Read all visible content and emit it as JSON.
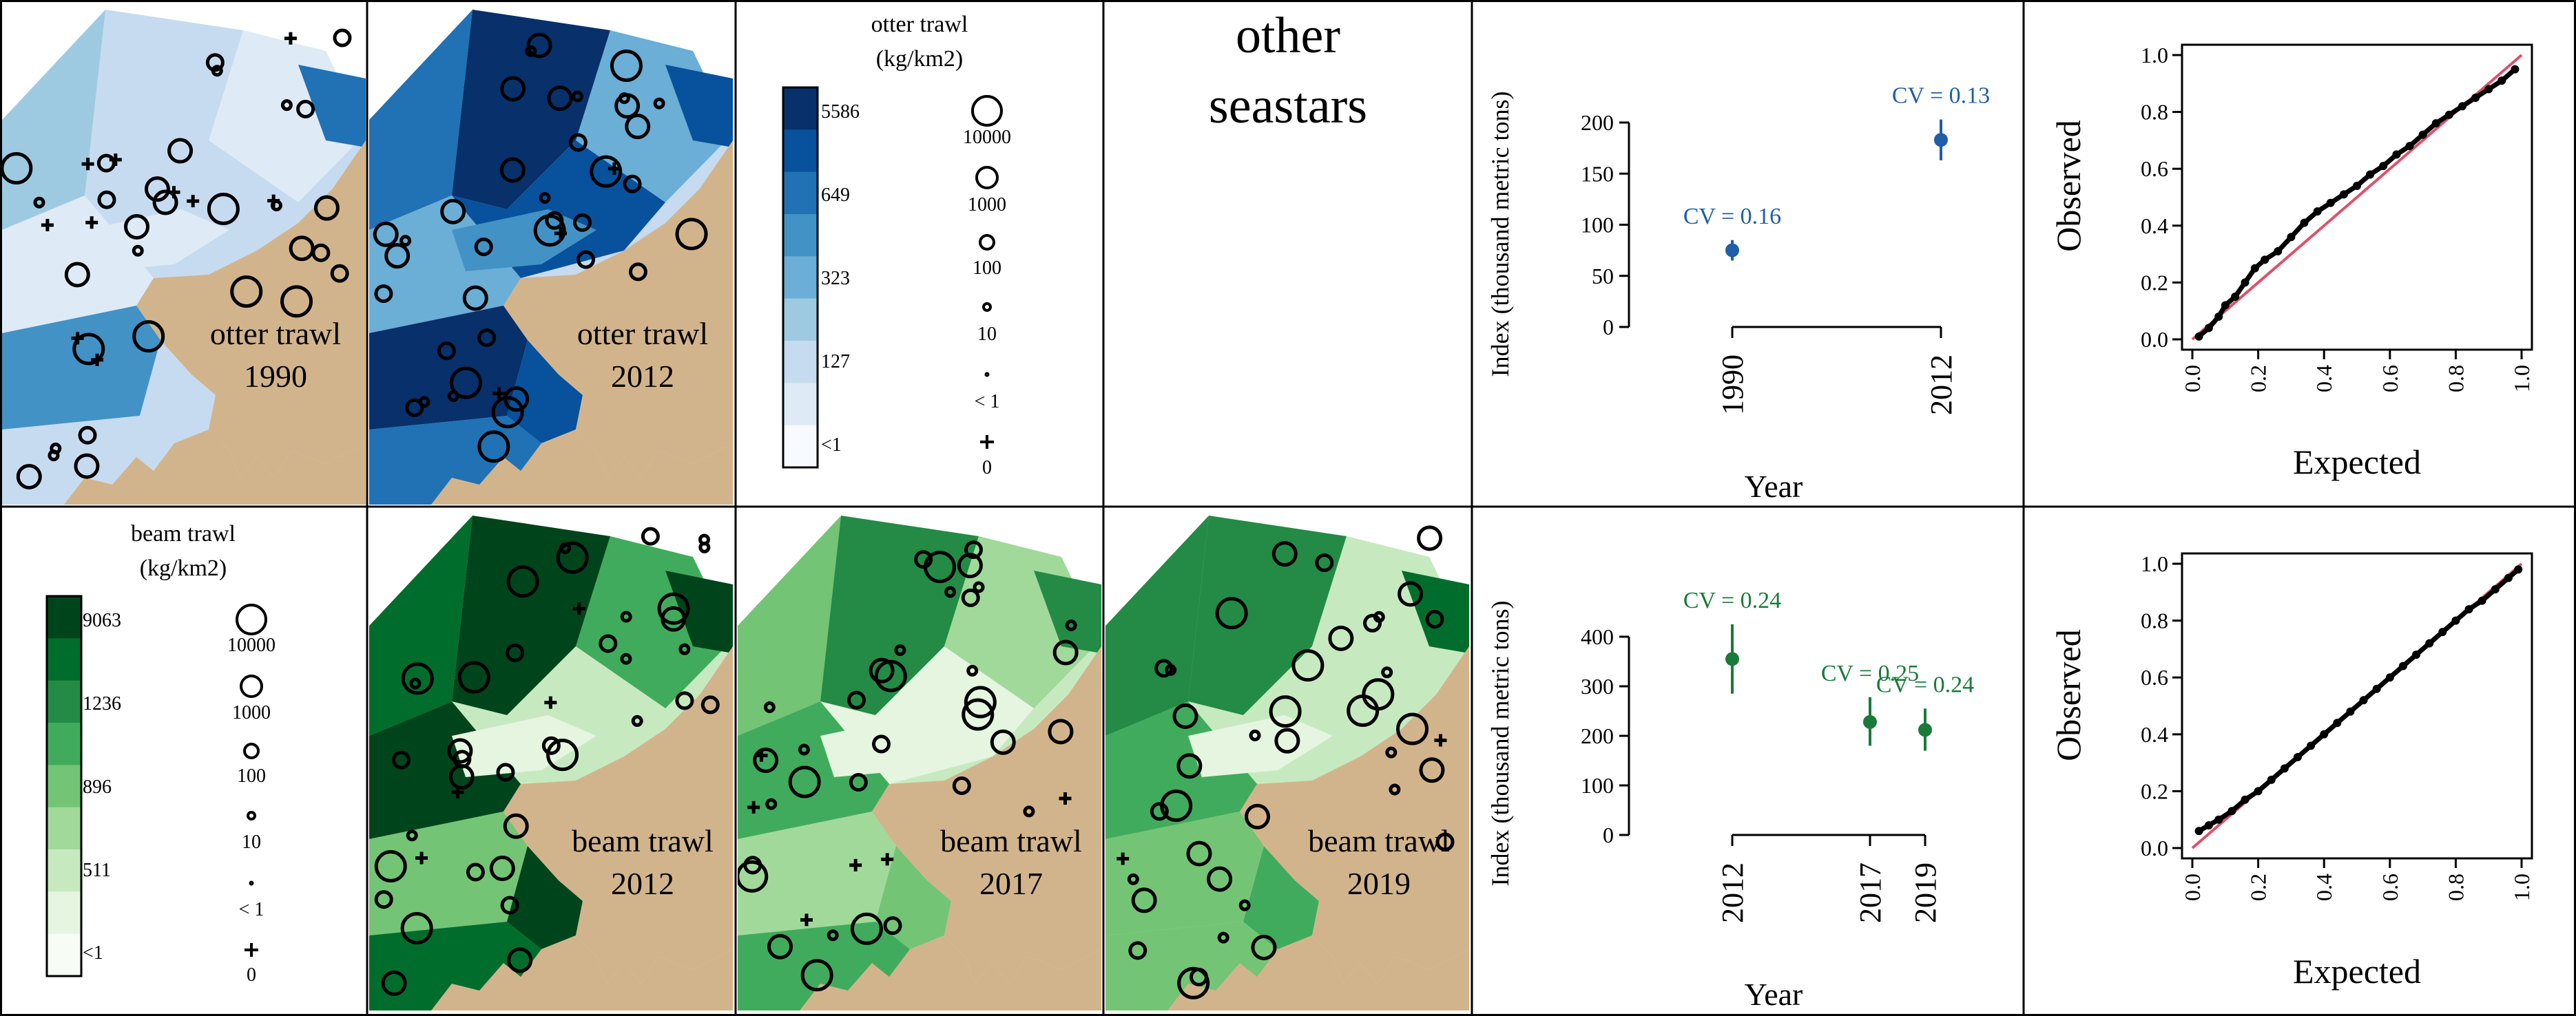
{
  "palettes": {
    "otter": [
      "#f7fbff",
      "#deebf7",
      "#c6dbef",
      "#9ecae1",
      "#6baed6",
      "#4292c6",
      "#2171b5",
      "#08519c",
      "#08306b"
    ],
    "beam": [
      "#f7fcf5",
      "#e5f5e0",
      "#c7e9c0",
      "#a1d99b",
      "#74c476",
      "#41ab5d",
      "#238b45",
      "#006d2c",
      "#00441b"
    ],
    "land": "#d2b48c",
    "otter_point": "#1f5ea8",
    "beam_point": "#1a7a3a",
    "ref_line": "#e0506a"
  },
  "top_row": {
    "maps": [
      {
        "gear": "otter trawl",
        "year": "1990"
      },
      {
        "gear": "otter trawl",
        "year": "2012"
      }
    ],
    "legend": {
      "title_line1": "otter trawl",
      "title_line2": "(kg/km2)",
      "color_labels": [
        "5586",
        "649",
        "323",
        "127",
        "<1"
      ],
      "size_labels": [
        "10000",
        "1000",
        "100",
        "10",
        "< 1",
        "0"
      ]
    },
    "species_title_line1": "other",
    "species_title_line2": "seastars",
    "index_ylabel": "Index (thousand metric tons)",
    "index_xlabel": "Year",
    "qq_ylabel": "Observed",
    "qq_xlabel": "Expected"
  },
  "bottom_row": {
    "legend": {
      "title_line1": "beam trawl",
      "title_line2": "(kg/km2)",
      "color_labels": [
        "9063",
        "1236",
        "896",
        "511",
        "<1"
      ],
      "size_labels": [
        "10000",
        "1000",
        "100",
        "10",
        "< 1",
        "0"
      ]
    },
    "maps": [
      {
        "gear": "beam trawl",
        "year": "2012"
      },
      {
        "gear": "beam trawl",
        "year": "2017"
      },
      {
        "gear": "beam trawl",
        "year": "2019"
      }
    ],
    "index_ylabel": "Index (thousand metric tons)",
    "index_xlabel": "Year",
    "qq_ylabel": "Observed",
    "qq_xlabel": "Expected"
  },
  "chart_data": [
    {
      "type": "scatter",
      "panel": "otter-index",
      "x": [
        "1990",
        "2012"
      ],
      "values": [
        75,
        183
      ],
      "lower": [
        65,
        163
      ],
      "upper": [
        85,
        203
      ],
      "annotations": [
        "CV = 0.16",
        "CV = 0.13"
      ],
      "xlabel": "Year",
      "ylabel": "Index (thousand metric tons)",
      "yticks": [
        0,
        50,
        100,
        150,
        200
      ],
      "ylim": [
        0,
        200
      ]
    },
    {
      "type": "scatter",
      "panel": "beam-index",
      "x": [
        "2012",
        "2017",
        "2019"
      ],
      "values": [
        355,
        228,
        212
      ],
      "lower": [
        285,
        180,
        170
      ],
      "upper": [
        425,
        278,
        255
      ],
      "annotations": [
        "CV = 0.24",
        "CV = 0.25",
        "CV = 0.24"
      ],
      "xlabel": "Year",
      "ylabel": "Index (thousand metric tons)",
      "yticks": [
        0,
        100,
        200,
        300,
        400
      ],
      "ylim": [
        0,
        400
      ]
    },
    {
      "type": "scatter",
      "panel": "otter-qq",
      "x": [
        0.02,
        0.05,
        0.08,
        0.1,
        0.13,
        0.16,
        0.19,
        0.22,
        0.26,
        0.3,
        0.34,
        0.38,
        0.42,
        0.46,
        0.5,
        0.54,
        0.58,
        0.62,
        0.66,
        0.7,
        0.74,
        0.78,
        0.82,
        0.86,
        0.9,
        0.94,
        0.98
      ],
      "values": [
        0.01,
        0.04,
        0.08,
        0.12,
        0.15,
        0.2,
        0.25,
        0.28,
        0.31,
        0.36,
        0.41,
        0.45,
        0.48,
        0.51,
        0.54,
        0.58,
        0.61,
        0.65,
        0.68,
        0.72,
        0.76,
        0.79,
        0.82,
        0.85,
        0.88,
        0.91,
        0.95
      ],
      "xlabel": "Expected",
      "ylabel": "Observed",
      "ticks": [
        "0.0",
        "0.2",
        "0.4",
        "0.6",
        "0.8",
        "1.0"
      ],
      "xlim": [
        0,
        1
      ],
      "ylim": [
        0,
        1
      ]
    },
    {
      "type": "scatter",
      "panel": "beam-qq",
      "x": [
        0.02,
        0.05,
        0.08,
        0.12,
        0.16,
        0.2,
        0.24,
        0.28,
        0.32,
        0.36,
        0.4,
        0.44,
        0.48,
        0.52,
        0.56,
        0.6,
        0.64,
        0.68,
        0.72,
        0.76,
        0.8,
        0.84,
        0.88,
        0.92,
        0.96,
        0.99
      ],
      "values": [
        0.06,
        0.08,
        0.1,
        0.13,
        0.17,
        0.2,
        0.24,
        0.28,
        0.32,
        0.36,
        0.4,
        0.44,
        0.48,
        0.52,
        0.56,
        0.6,
        0.64,
        0.68,
        0.72,
        0.76,
        0.8,
        0.84,
        0.87,
        0.91,
        0.95,
        0.98
      ],
      "xlabel": "Expected",
      "ylabel": "Observed",
      "ticks": [
        "0.0",
        "0.2",
        "0.4",
        "0.6",
        "0.8",
        "1.0"
      ],
      "xlim": [
        0,
        1
      ],
      "ylim": [
        0,
        1
      ]
    }
  ]
}
